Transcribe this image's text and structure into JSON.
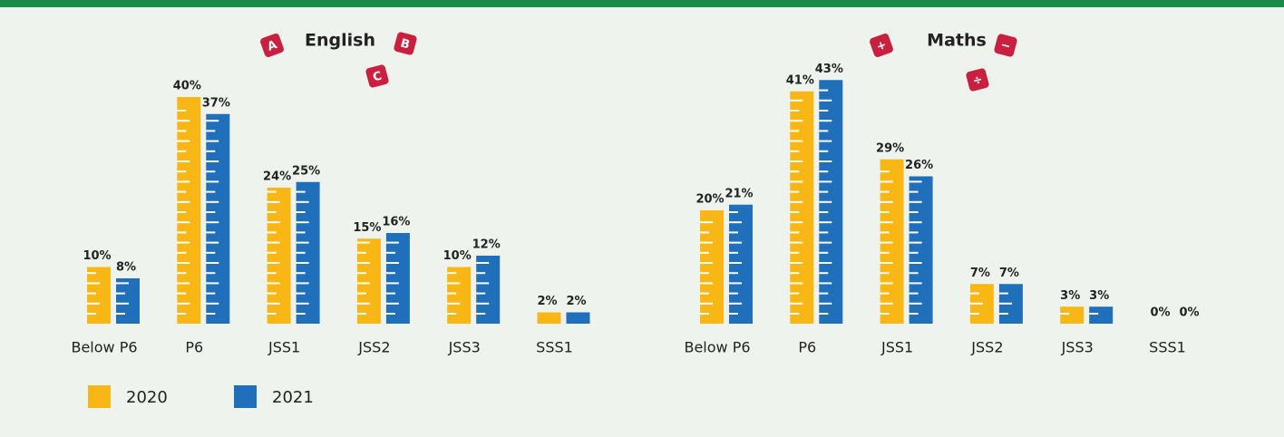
{
  "chart_data": [
    {
      "type": "bar",
      "title": "English",
      "icons": [
        "A",
        "B",
        "C"
      ],
      "categories": [
        "Below P6",
        "P6",
        "JSS1",
        "JSS2",
        "JSS3",
        "SSS1"
      ],
      "series": [
        {
          "name": "2020",
          "color": "#f9b715",
          "values": [
            10,
            40,
            24,
            15,
            10,
            2
          ],
          "value_labels": [
            "10%",
            "40%",
            "24%",
            "15%",
            "10%",
            "2%"
          ]
        },
        {
          "name": "2021",
          "color": "#1f6fba",
          "values": [
            8,
            37,
            25,
            16,
            12,
            2
          ],
          "value_labels": [
            "8%",
            "37%",
            "25%",
            "16%",
            "12%",
            "2%"
          ]
        }
      ]
    },
    {
      "type": "bar",
      "title": "Maths",
      "icons": [
        "+",
        "−",
        "÷"
      ],
      "categories": [
        "Below P6",
        "P6",
        "JSS1",
        "JSS2",
        "JSS3",
        "SSS1"
      ],
      "series": [
        {
          "name": "2020",
          "color": "#f9b715",
          "values": [
            20,
            41,
            29,
            7,
            3,
            0
          ],
          "value_labels": [
            "20%",
            "41%",
            "29%",
            "7%",
            "3%",
            "0%"
          ]
        },
        {
          "name": "2021",
          "color": "#1f6fba",
          "values": [
            21,
            43,
            26,
            7,
            3,
            0
          ],
          "value_labels": [
            "21%",
            "43%",
            "26%",
            "7%",
            "3%",
            "0%"
          ]
        }
      ]
    }
  ]
}
